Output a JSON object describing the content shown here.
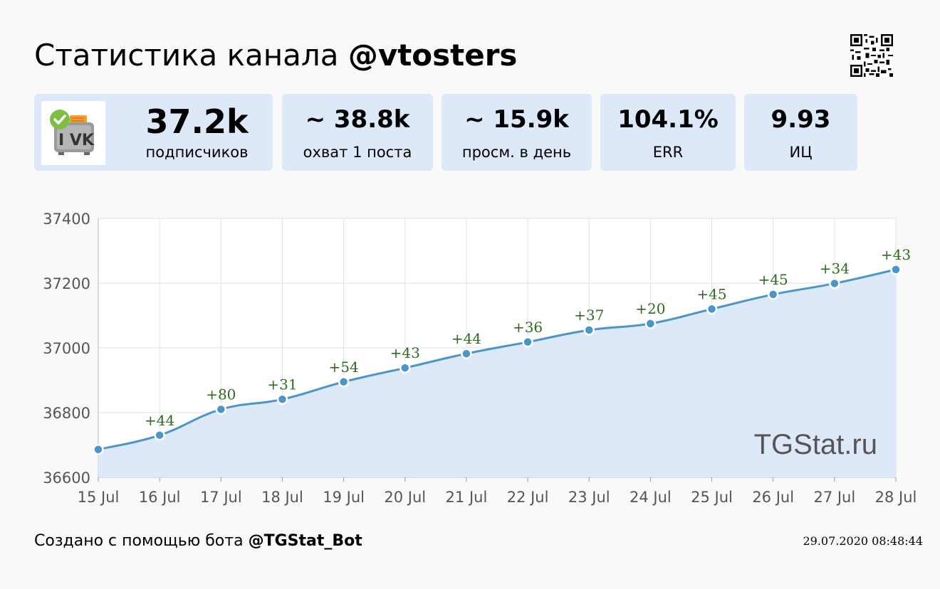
{
  "header": {
    "title_prefix": "Статистика канала ",
    "title_channel": "@vtosters"
  },
  "stats": [
    {
      "value": "37.2k",
      "label": "подписчиков"
    },
    {
      "value": "~ 38.8k",
      "label": "охват 1 поста"
    },
    {
      "value": "~ 15.9k",
      "label": "просм. в день"
    },
    {
      "value": "104.1%",
      "label": "ERR"
    },
    {
      "value": "9.93",
      "label": "ИЦ"
    }
  ],
  "avatar": {
    "text": "I VK",
    "verified_color": "#7cc043",
    "icon": "vk-toaster-logo"
  },
  "chart_data": {
    "type": "area",
    "categories": [
      "15 Jul",
      "16 Jul",
      "17 Jul",
      "18 Jul",
      "19 Jul",
      "20 Jul",
      "21 Jul",
      "22 Jul",
      "23 Jul",
      "24 Jul",
      "25 Jul",
      "26 Jul",
      "27 Jul",
      "28 Jul"
    ],
    "values": [
      36686,
      36730,
      36810,
      36841,
      36895,
      36938,
      36982,
      37018,
      37055,
      37075,
      37120,
      37165,
      37199,
      37242
    ],
    "point_labels": [
      "",
      "+44",
      "+80",
      "+31",
      "+54",
      "+43",
      "+44",
      "+36",
      "+37",
      "+20",
      "+45",
      "+45",
      "+34",
      "+43"
    ],
    "yticks": [
      "37400",
      "37200",
      "37000",
      "36800",
      "36600"
    ],
    "ylim": [
      36600,
      37400
    ],
    "grid": true,
    "watermark": "TGStat.ru",
    "line_color": "#4a96c8",
    "fill_color": "#dde8f8",
    "label_color": "#2e6b20"
  },
  "footer": {
    "prefix": "Создано с помощью бота ",
    "bot": "@TGStat_Bot",
    "timestamp": "29.07.2020 08:48:44"
  }
}
